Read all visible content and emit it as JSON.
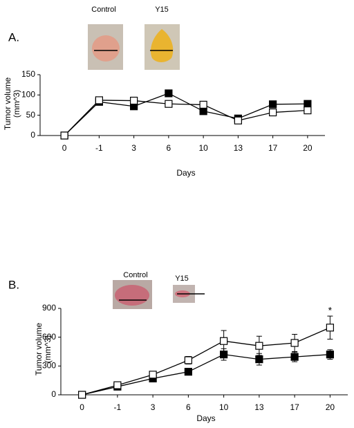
{
  "chart_data": [
    {
      "type": "line",
      "panel": "A.",
      "image_labels": [
        "Control",
        "Y15"
      ],
      "ylabel": [
        "Tumor volume",
        "(mm^3)"
      ],
      "xlabel": "Days",
      "categories": [
        "0",
        "-1",
        "3",
        "6",
        "10",
        "13",
        "17",
        "20"
      ],
      "ylim": [
        0,
        150
      ],
      "yticks": [
        0,
        50,
        100,
        150
      ],
      "series": [
        {
          "color": "#000000",
          "values": [
            0,
            83,
            72,
            104,
            60,
            42,
            77,
            78
          ]
        },
        {
          "color": "#ffffff",
          "values": [
            0,
            87,
            86,
            78,
            76,
            37,
            57,
            62
          ]
        }
      ]
    },
    {
      "type": "line",
      "panel": "B.",
      "image_labels": [
        "Control",
        "Y15"
      ],
      "ylabel": [
        "Tumor volume",
        "(mm^3)"
      ],
      "xlabel": "Days",
      "categories": [
        "0",
        "-1",
        "3",
        "6",
        "10",
        "13",
        "17",
        "20"
      ],
      "ylim": [
        0,
        900
      ],
      "yticks": [
        0,
        300,
        600,
        900
      ],
      "annotation": "*",
      "series": [
        {
          "color": "#000000",
          "values": [
            0,
            85,
            170,
            240,
            420,
            370,
            395,
            420
          ],
          "errors": [
            0,
            0,
            0,
            20,
            60,
            60,
            50,
            50
          ]
        },
        {
          "color": "#ffffff",
          "values": [
            0,
            100,
            210,
            360,
            560,
            510,
            540,
            700
          ],
          "errors": [
            0,
            0,
            20,
            40,
            110,
            100,
            90,
            120
          ]
        }
      ]
    }
  ]
}
